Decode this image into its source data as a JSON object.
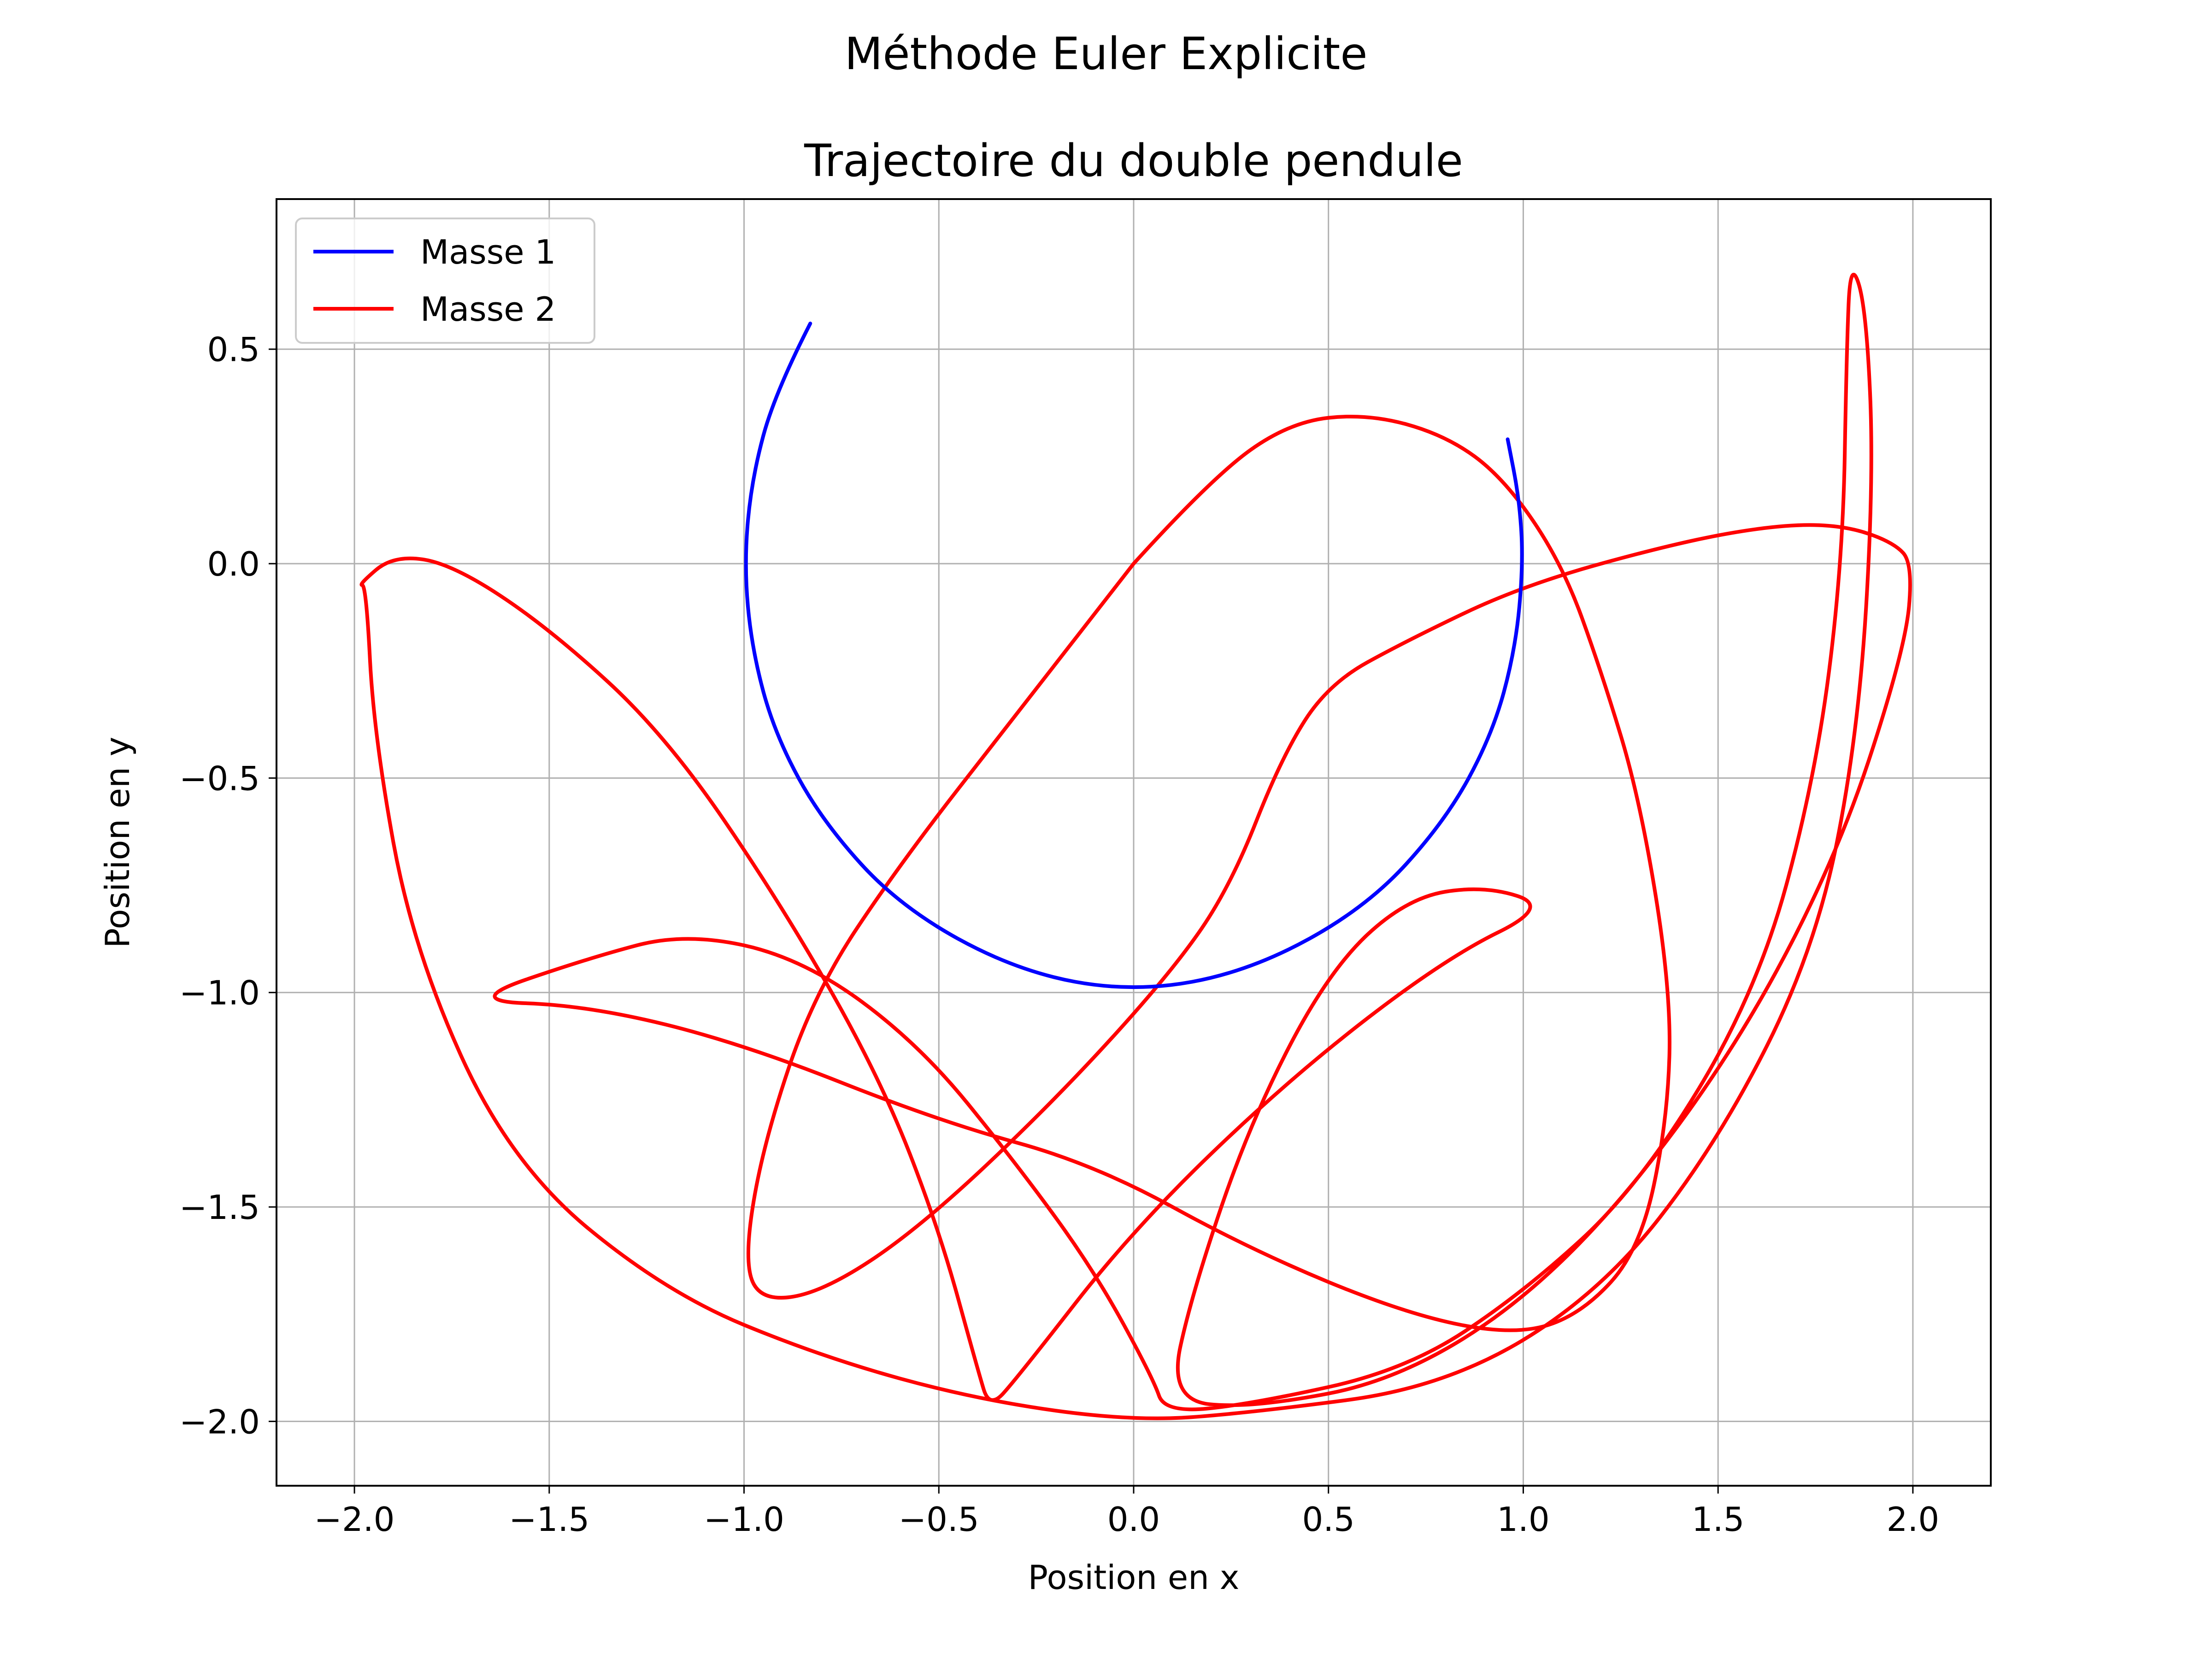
{
  "figure": {
    "suptitle": "Méthode Euler Explicite"
  },
  "chart_data": {
    "type": "line",
    "title": "Trajectoire du double pendule",
    "xlabel": "Position en x",
    "ylabel": "Position en y",
    "xlim": [
      -2.2,
      2.2
    ],
    "ylim": [
      -2.15,
      0.85
    ],
    "xticks": [
      -2.0,
      -1.5,
      -1.0,
      -0.5,
      0.0,
      0.5,
      1.0,
      1.5,
      2.0
    ],
    "xtick_labels": [
      "−2.0",
      "−1.5",
      "−1.0",
      "−0.5",
      "0.0",
      "0.5",
      "1.0",
      "1.5",
      "2.0"
    ],
    "yticks": [
      0.5,
      0.0,
      -0.5,
      -1.0,
      -1.5,
      -2.0
    ],
    "ytick_labels": [
      "0.5",
      "0.0",
      "−0.5",
      "−1.0",
      "−1.5",
      "−2.0"
    ],
    "grid": true,
    "legend_position": "top-left",
    "series": [
      {
        "name": "Masse 1",
        "color": "#0000ff",
        "points": [
          [
            -0.83,
            0.56
          ],
          [
            -0.92,
            0.4
          ],
          [
            -0.98,
            0.2
          ],
          [
            -1.0,
            0.0
          ],
          [
            -0.98,
            -0.2
          ],
          [
            -0.92,
            -0.4
          ],
          [
            -0.8,
            -0.6
          ],
          [
            -0.6,
            -0.8
          ],
          [
            -0.3,
            -0.95
          ],
          [
            0.0,
            -1.0
          ],
          [
            0.3,
            -0.95
          ],
          [
            0.6,
            -0.8
          ],
          [
            0.8,
            -0.6
          ],
          [
            0.92,
            -0.4
          ],
          [
            0.98,
            -0.2
          ],
          [
            1.0,
            0.0
          ],
          [
            0.99,
            0.15
          ],
          [
            0.96,
            0.29
          ]
        ]
      },
      {
        "name": "Masse 2",
        "color": "#ff0000",
        "points": [
          [
            0.0,
            0.0
          ],
          [
            0.2,
            0.2
          ],
          [
            0.4,
            0.33
          ],
          [
            0.6,
            0.35
          ],
          [
            0.8,
            0.3
          ],
          [
            0.95,
            0.2
          ],
          [
            1.1,
            0.0
          ],
          [
            1.2,
            -0.25
          ],
          [
            1.3,
            -0.55
          ],
          [
            1.38,
            -1.0
          ],
          [
            1.37,
            -1.3
          ],
          [
            1.3,
            -1.6
          ],
          [
            1.15,
            -1.75
          ],
          [
            0.98,
            -1.8
          ],
          [
            0.7,
            -1.75
          ],
          [
            0.3,
            -1.6
          ],
          [
            -0.1,
            -1.4
          ],
          [
            -0.5,
            -1.3
          ],
          [
            -1.0,
            -1.12
          ],
          [
            -1.4,
            -1.03
          ],
          [
            -1.72,
            -1.02
          ],
          [
            -1.4,
            -0.92
          ],
          [
            -1.15,
            -0.86
          ],
          [
            -0.85,
            -0.92
          ],
          [
            -0.55,
            -1.12
          ],
          [
            -0.3,
            -1.4
          ],
          [
            -0.1,
            -1.65
          ],
          [
            0.05,
            -1.9
          ],
          [
            0.08,
            -1.98
          ],
          [
            0.3,
            -1.96
          ],
          [
            0.7,
            -1.88
          ],
          [
            1.0,
            -1.7
          ],
          [
            1.3,
            -1.45
          ],
          [
            1.6,
            -1.0
          ],
          [
            1.75,
            -0.5
          ],
          [
            1.82,
            0.0
          ],
          [
            1.83,
            0.5
          ],
          [
            1.84,
            0.71
          ],
          [
            1.88,
            0.6
          ],
          [
            1.9,
            0.2
          ],
          [
            1.86,
            -0.4
          ],
          [
            1.75,
            -0.9
          ],
          [
            1.5,
            -1.35
          ],
          [
            1.2,
            -1.7
          ],
          [
            0.8,
            -1.92
          ],
          [
            0.3,
            -1.98
          ],
          [
            0.0,
            -2.0
          ],
          [
            -0.4,
            -1.95
          ],
          [
            -0.8,
            -1.85
          ],
          [
            -1.2,
            -1.7
          ],
          [
            -1.6,
            -1.4
          ],
          [
            -1.85,
            -0.9
          ],
          [
            -1.95,
            -0.4
          ],
          [
            -1.97,
            -0.05
          ],
          [
            -1.99,
            -0.05
          ],
          [
            -1.9,
            0.02
          ],
          [
            -1.75,
            0.0
          ],
          [
            -1.5,
            -0.15
          ],
          [
            -1.2,
            -0.4
          ],
          [
            -0.9,
            -0.8
          ],
          [
            -0.65,
            -1.2
          ],
          [
            -0.5,
            -1.55
          ],
          [
            -0.4,
            -1.88
          ],
          [
            -0.37,
            -1.97
          ],
          [
            -0.3,
            -1.9
          ],
          [
            0.0,
            -1.55
          ],
          [
            0.4,
            -1.2
          ],
          [
            0.8,
            -0.92
          ],
          [
            1.07,
            -0.8
          ],
          [
            0.9,
            -0.75
          ],
          [
            0.7,
            -0.78
          ],
          [
            0.5,
            -0.95
          ],
          [
            0.3,
            -1.3
          ],
          [
            0.15,
            -1.7
          ],
          [
            0.09,
            -1.95
          ],
          [
            0.3,
            -1.97
          ],
          [
            0.7,
            -1.9
          ],
          [
            1.1,
            -1.65
          ],
          [
            1.5,
            -1.2
          ],
          [
            1.8,
            -0.7
          ],
          [
            1.98,
            -0.2
          ],
          [
            2.0,
            0.0
          ],
          [
            1.95,
            0.05
          ],
          [
            1.82,
            0.09
          ],
          [
            1.65,
            0.09
          ],
          [
            1.4,
            0.05
          ],
          [
            1.0,
            -0.05
          ],
          [
            0.7,
            -0.18
          ],
          [
            0.5,
            -0.28
          ],
          [
            0.38,
            -0.45
          ],
          [
            0.25,
            -0.75
          ],
          [
            0.1,
            -0.95
          ],
          [
            -0.2,
            -1.25
          ],
          [
            -0.55,
            -1.55
          ],
          [
            -0.8,
            -1.7
          ],
          [
            -0.96,
            -1.72
          ],
          [
            -1.0,
            -1.62
          ],
          [
            -0.95,
            -1.35
          ],
          [
            -0.82,
            -1.0
          ],
          [
            -0.6,
            -0.7
          ],
          [
            -0.3,
            -0.35
          ],
          [
            0.0,
            0.0
          ]
        ]
      }
    ]
  }
}
